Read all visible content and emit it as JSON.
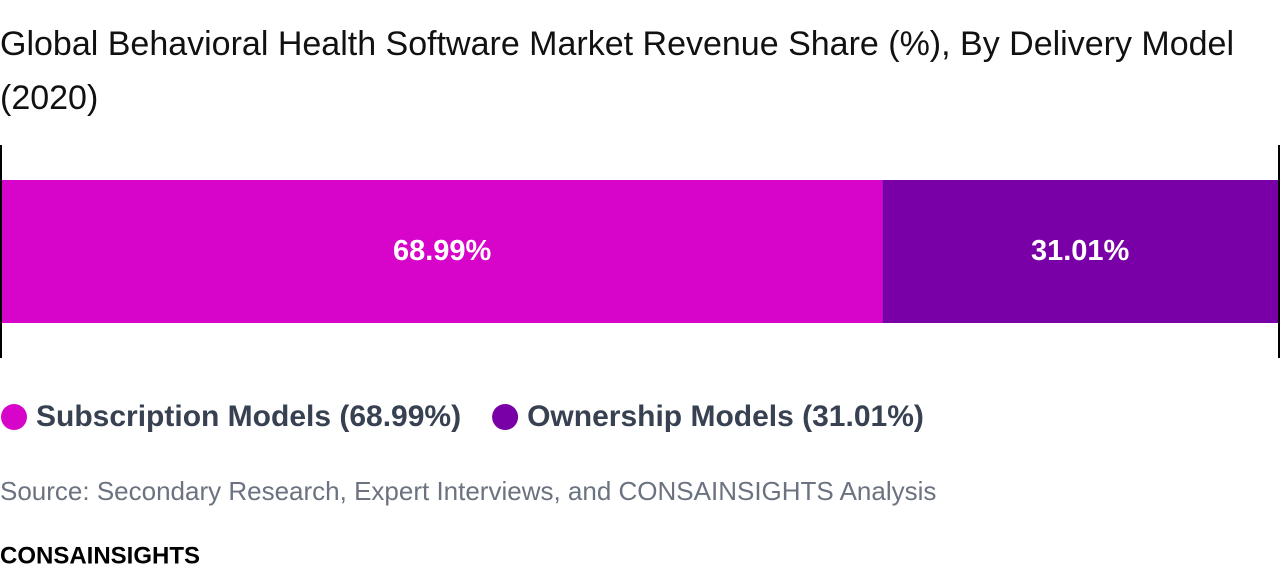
{
  "chart_data": {
    "type": "bar",
    "title": "Global Behavioral Health Software Market Revenue Share (%), By Delivery Model (2020)",
    "series": [
      {
        "name": "Subscription Models (68.99%)",
        "color": "#d704c9",
        "values": [
          68.99
        ],
        "value_labels": [
          "68.99%"
        ]
      },
      {
        "name": "Ownership Models (31.01%)",
        "color": "#7900a6",
        "values": [
          31.01
        ],
        "value_labels": [
          "31.01%"
        ]
      }
    ],
    "xlim": [
      0,
      100
    ],
    "source": "Source: Secondary Research, Expert Interviews, and CONSAINSIGHTS Analysis",
    "brand": "CONSAINSIGHTS"
  }
}
